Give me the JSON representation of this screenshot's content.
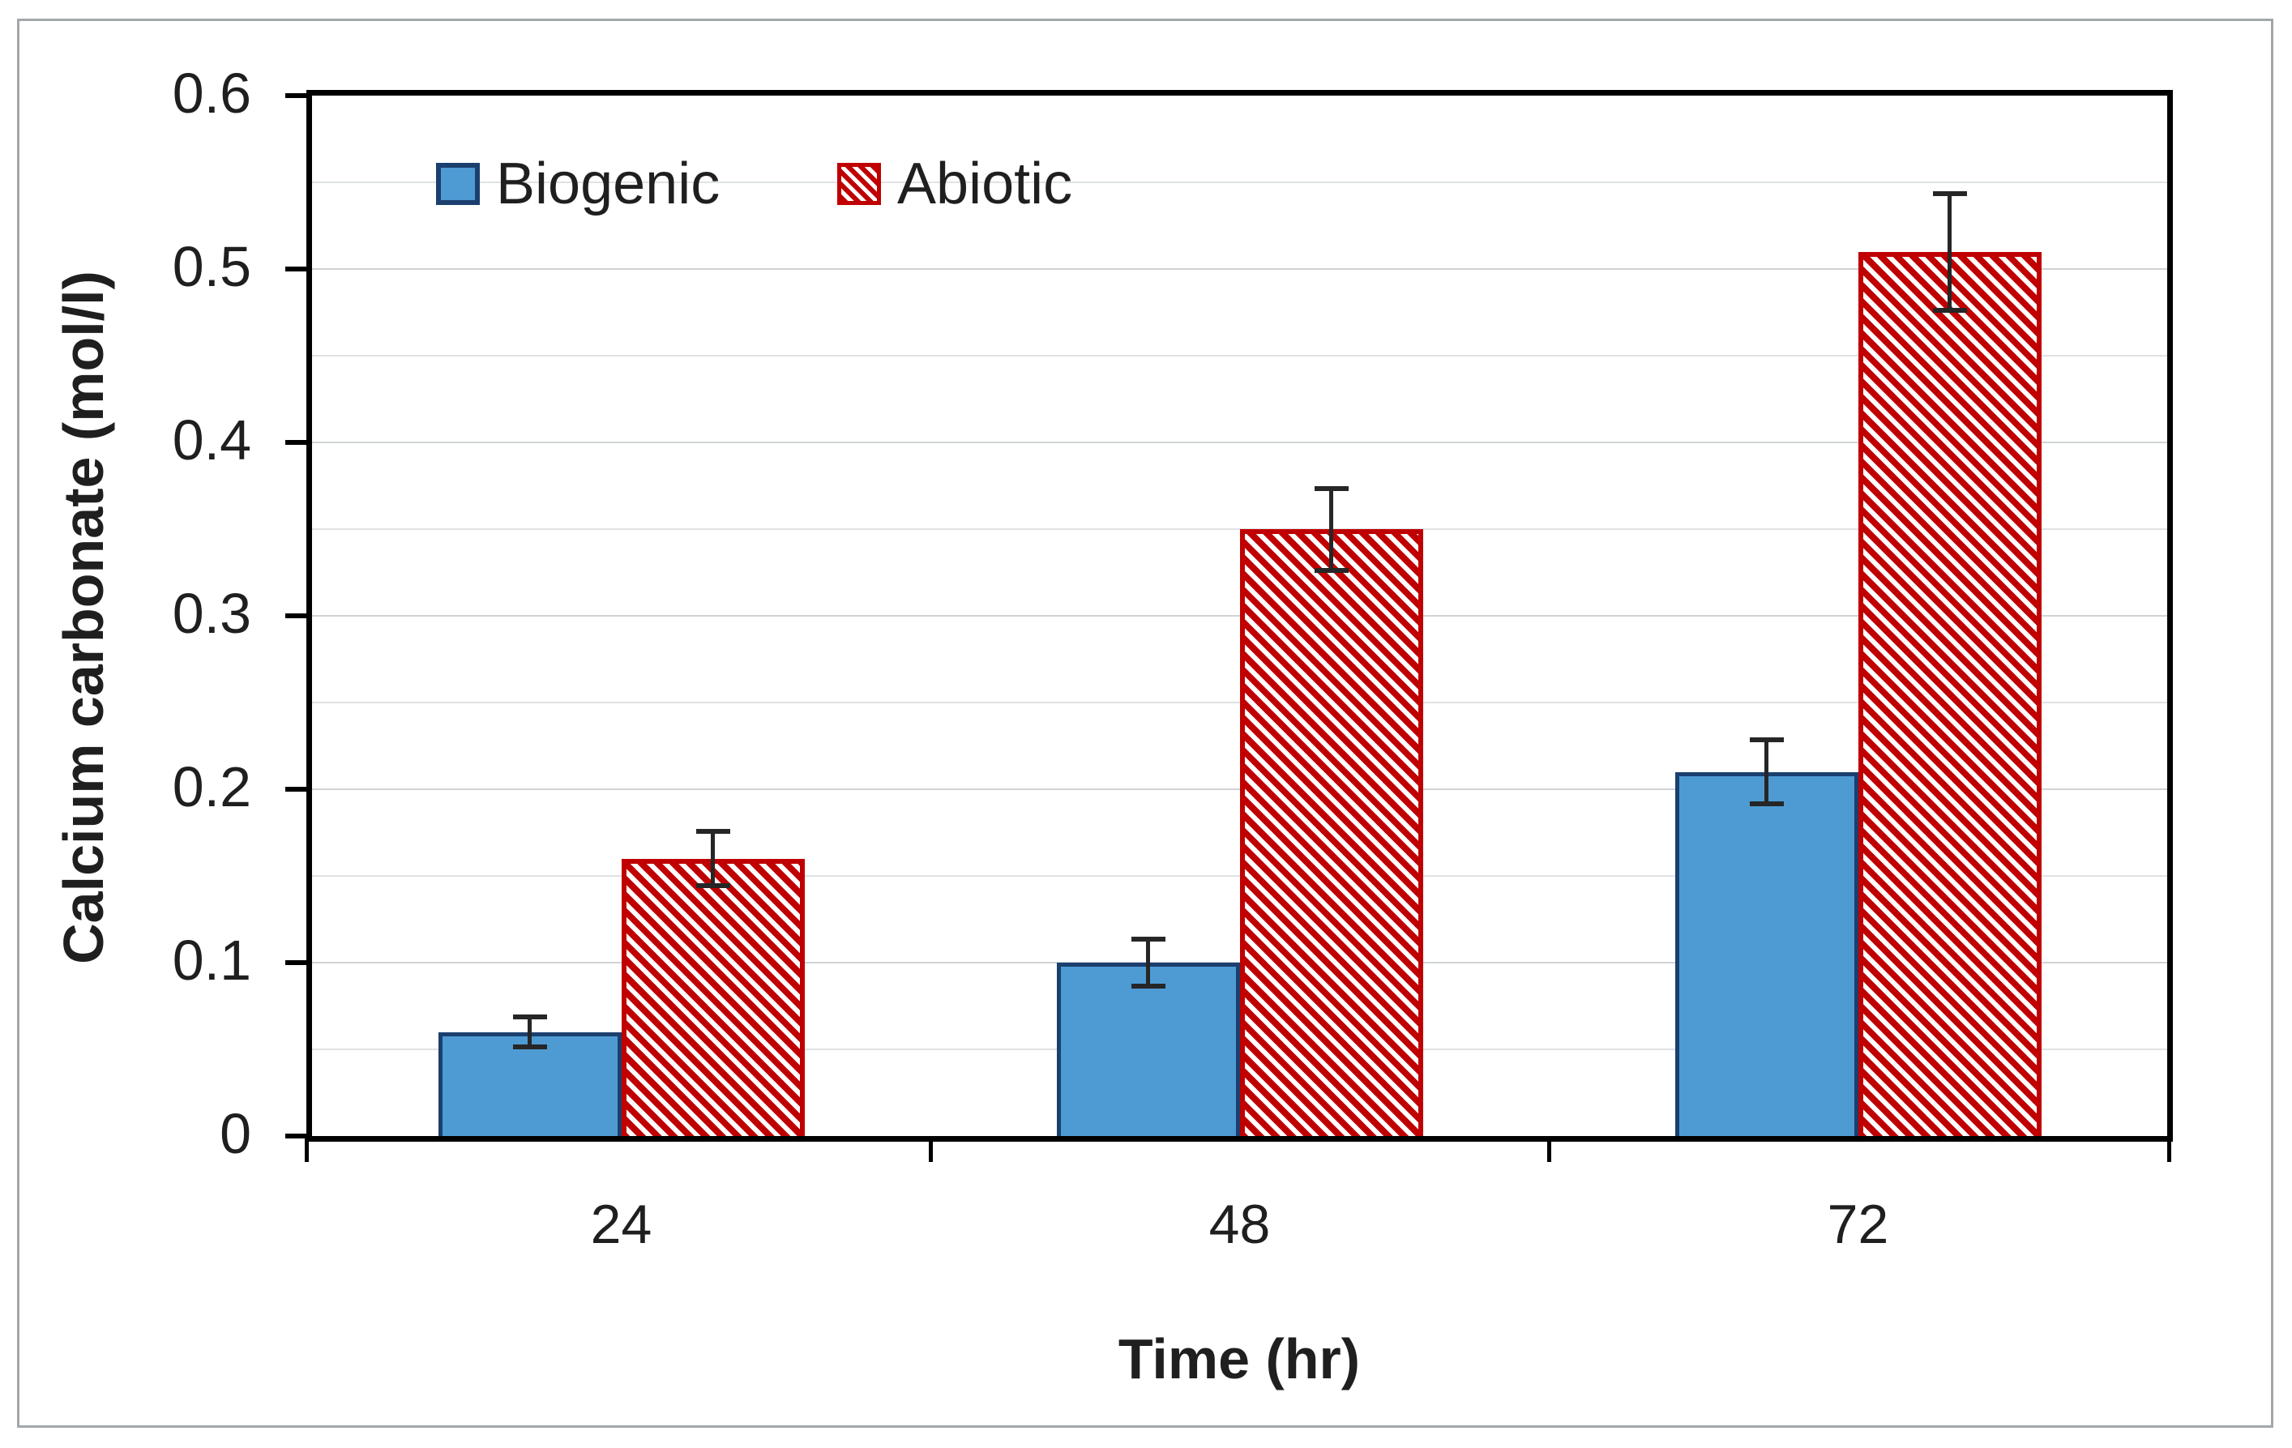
{
  "figure": {
    "outer_border_color": "#A3A7AA",
    "background_color": "#FFFFFF",
    "frame_color": "#000000"
  },
  "chart_data": {
    "type": "bar",
    "title": "",
    "xlabel": "Time (hr)",
    "ylabel": "Calcium carbonate (mol/l)",
    "categories": [
      "24",
      "48",
      "72"
    ],
    "series": [
      {
        "name": "Biogenic",
        "values": [
          0.06,
          0.1,
          0.21
        ],
        "error_bars": [
          0.01,
          0.015,
          0.02
        ],
        "fill_color": "#4E9BD4",
        "border_color": "#1B3F6E",
        "pattern": "solid"
      },
      {
        "name": "Abiotic",
        "values": [
          0.16,
          0.35,
          0.51
        ],
        "error_bars": [
          0.017,
          0.025,
          0.035
        ],
        "fill_color": "#C00000",
        "border_color": "#C00000",
        "pattern": "diagonal-hatch-white"
      }
    ],
    "ylim": [
      0,
      0.6
    ],
    "ytick_labels": [
      "0",
      "0.1",
      "0.2",
      "0.3",
      "0.4",
      "0.5",
      "0.6"
    ],
    "ytick_step": 0.1,
    "minor_gridline_step": 0.05,
    "grid": "horizontal",
    "legend_position": "inside-top-left",
    "error_bar_color": "#262626"
  }
}
